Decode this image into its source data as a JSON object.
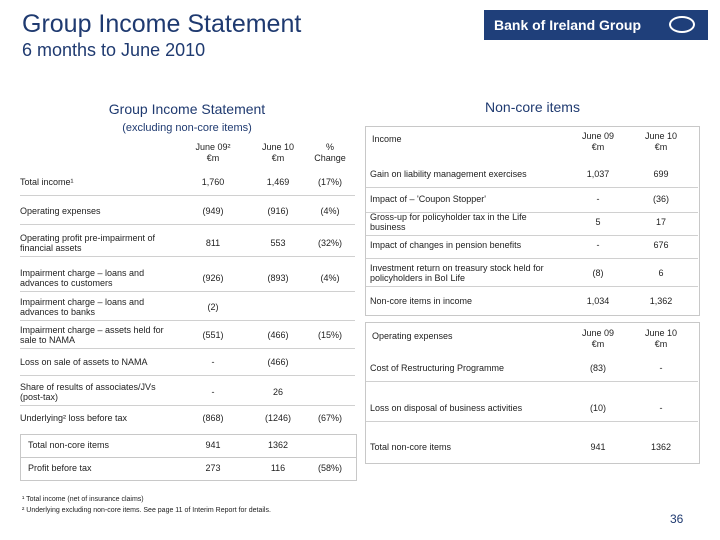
{
  "header": {
    "title": "Group Income Statement",
    "subtitle": "6 months to June 2010",
    "logo": "Bank of Ireland Group"
  },
  "left": {
    "title": "Group Income Statement",
    "subtitle": "(excluding non-core items)",
    "columns": [
      [
        "June 09²",
        "€m"
      ],
      [
        "June 10",
        "€m"
      ],
      [
        "%",
        "Change"
      ]
    ],
    "rows": [
      [
        "Total income¹",
        "1,760",
        "1,469",
        "(17%)"
      ],
      [
        "Operating expenses",
        "(949)",
        "(916)",
        "(4%)"
      ],
      [
        "Operating profit pre-impairment of financial assets",
        "811",
        "553",
        "(32%)"
      ],
      [
        "Impairment charge – loans and advances to customers",
        "(926)",
        "(893)",
        "(4%)"
      ],
      [
        "Impairment charge – loans and advances to banks",
        "(2)",
        null,
        null
      ],
      [
        "Impairment charge – assets held for sale to NAMA",
        "(551)",
        "(466)",
        "(15%)"
      ],
      [
        "Loss on sale of assets to NAMA",
        "-",
        "(466)",
        null
      ],
      [
        "Share of results of associates/JVs (post-tax)",
        "-",
        "26",
        null
      ],
      [
        "Underlying² loss before tax",
        "(868)",
        "(1246)",
        "(67%)"
      ],
      [
        "Total non-core items",
        "941",
        "1362",
        null
      ],
      [
        "Profit before tax",
        "273",
        "116",
        "(58%)"
      ]
    ]
  },
  "right": {
    "title": "Non-core items",
    "income": {
      "columns": [
        "Income",
        [
          "June 09",
          "€m"
        ],
        [
          "June 10",
          "€m"
        ]
      ],
      "rows": [
        [
          "Gain on liability management exercises",
          "1,037",
          "699"
        ],
        [
          "Impact of – 'Coupon Stopper'",
          "-",
          "(36)"
        ],
        [
          "Gross-up for policyholder tax in the Life business",
          "5",
          "17"
        ],
        [
          "Impact of changes in pension benefits",
          "-",
          "676"
        ],
        [
          "Investment return on treasury stock held for policyholders in BoI Life",
          "(8)",
          "6"
        ],
        [
          "Non-core items in income",
          "1,034",
          "1,362"
        ]
      ]
    },
    "expenses": {
      "columns": [
        "Operating expenses",
        [
          "June 09",
          "€m"
        ],
        [
          "June 10",
          "€m"
        ]
      ],
      "rows": [
        [
          "Cost of Restructuring Programme",
          "(83)",
          "-"
        ],
        [
          "Loss on disposal of business activities",
          "(10)",
          "-"
        ],
        [
          "Total non-core items",
          "941",
          "1362"
        ]
      ]
    }
  },
  "footnotes": [
    "¹ Total income (net of insurance claims)",
    "² Underlying excluding non-core items. See page 11 of Interim Report for details."
  ],
  "page_number": "36"
}
